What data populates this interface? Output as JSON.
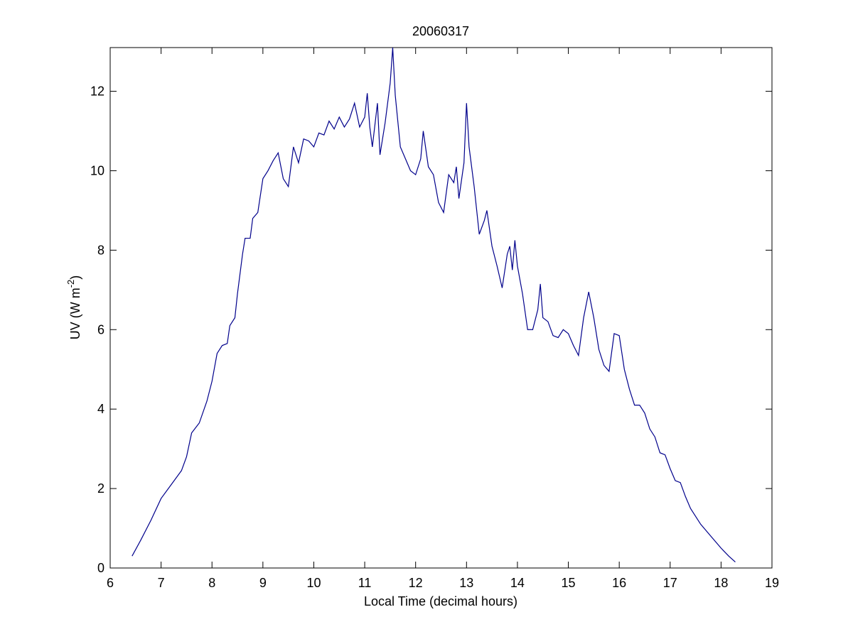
{
  "chart_data": {
    "type": "line",
    "title": "20060317",
    "x_label": "Local Time (decimal hours)",
    "y_label_parts": [
      "UV (W m",
      "-2",
      ")"
    ],
    "color": "#00008b",
    "x": [
      6.43,
      6.6,
      6.8,
      7.0,
      7.2,
      7.4,
      7.5,
      7.6,
      7.75,
      7.9,
      8.0,
      8.1,
      8.2,
      8.3,
      8.35,
      8.45,
      8.5,
      8.6,
      8.65,
      8.75,
      8.8,
      8.9,
      9.0,
      9.1,
      9.2,
      9.3,
      9.4,
      9.5,
      9.6,
      9.7,
      9.8,
      9.9,
      10.0,
      10.1,
      10.2,
      10.3,
      10.4,
      10.5,
      10.6,
      10.7,
      10.8,
      10.9,
      11.0,
      11.05,
      11.1,
      11.15,
      11.25,
      11.3,
      11.4,
      11.5,
      11.55,
      11.6,
      11.7,
      11.8,
      11.9,
      12.0,
      12.1,
      12.15,
      12.25,
      12.35,
      12.45,
      12.55,
      12.65,
      12.75,
      12.8,
      12.85,
      12.95,
      13.0,
      13.05,
      13.15,
      13.25,
      13.35,
      13.4,
      13.5,
      13.6,
      13.7,
      13.8,
      13.85,
      13.9,
      13.95,
      14.0,
      14.1,
      14.2,
      14.3,
      14.4,
      14.45,
      14.5,
      14.6,
      14.7,
      14.8,
      14.9,
      15.0,
      15.1,
      15.2,
      15.3,
      15.4,
      15.5,
      15.6,
      15.7,
      15.8,
      15.9,
      16.0,
      16.1,
      16.2,
      16.3,
      16.4,
      16.5,
      16.6,
      16.7,
      16.8,
      16.9,
      17.0,
      17.1,
      17.2,
      17.3,
      17.4,
      17.6,
      17.8,
      18.0,
      18.15,
      18.28
    ],
    "values": [
      0.3,
      0.7,
      1.2,
      1.75,
      2.1,
      2.45,
      2.8,
      3.4,
      3.65,
      4.2,
      4.7,
      5.4,
      5.6,
      5.65,
      6.1,
      6.3,
      6.9,
      7.9,
      8.3,
      8.3,
      8.8,
      8.95,
      9.8,
      10.0,
      10.25,
      10.45,
      9.8,
      9.6,
      10.6,
      10.2,
      10.8,
      10.75,
      10.6,
      10.95,
      10.9,
      11.25,
      11.05,
      11.35,
      11.1,
      11.3,
      11.7,
      11.1,
      11.35,
      11.95,
      11.1,
      10.6,
      11.7,
      10.4,
      11.2,
      12.2,
      13.1,
      11.9,
      10.6,
      10.3,
      10.0,
      9.9,
      10.3,
      11.0,
      10.1,
      9.9,
      9.2,
      8.95,
      9.9,
      9.7,
      10.1,
      9.3,
      10.2,
      11.7,
      10.6,
      9.6,
      8.4,
      8.75,
      9.0,
      8.1,
      7.6,
      7.05,
      7.9,
      8.1,
      7.5,
      8.25,
      7.6,
      6.9,
      6.0,
      6.0,
      6.5,
      7.15,
      6.3,
      6.2,
      5.85,
      5.8,
      6.0,
      5.9,
      5.6,
      5.35,
      6.3,
      6.95,
      6.3,
      5.5,
      5.1,
      4.95,
      5.9,
      5.85,
      5.0,
      4.5,
      4.1,
      4.1,
      3.9,
      3.5,
      3.3,
      2.9,
      2.85,
      2.5,
      2.2,
      2.15,
      1.8,
      1.5,
      1.1,
      0.8,
      0.5,
      0.3,
      0.15
    ],
    "xlim": [
      6,
      19
    ],
    "ylim": [
      0,
      13.1
    ],
    "xticks": [
      6,
      7,
      8,
      9,
      10,
      11,
      12,
      13,
      14,
      15,
      16,
      17,
      18,
      19
    ],
    "yticks": [
      0,
      2,
      4,
      6,
      8,
      10,
      12
    ]
  }
}
